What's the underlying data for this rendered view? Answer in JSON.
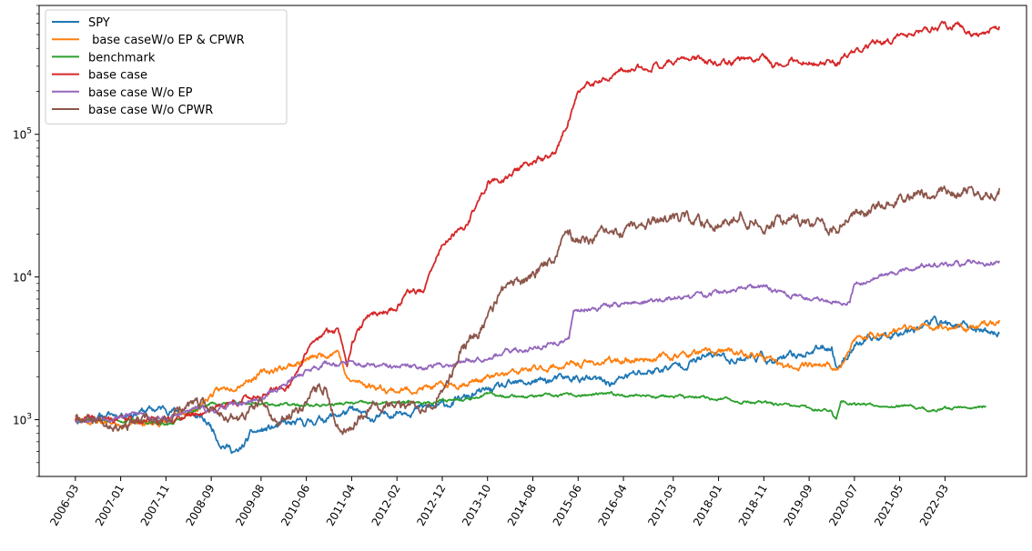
{
  "chart_data": {
    "type": "line",
    "title": "",
    "xlabel": "",
    "ylabel": "",
    "yscale": "log",
    "ylim": [
      400,
      800000
    ],
    "yticks": [
      {
        "value": 1000,
        "base": "10",
        "exp": "3"
      },
      {
        "value": 10000,
        "base": "10",
        "exp": "4"
      },
      {
        "value": 100000,
        "base": "10",
        "exp": "5"
      }
    ],
    "xticks": [
      "2006-03",
      "2007-01",
      "2007-11",
      "2008-09",
      "2009-08",
      "2010-06",
      "2011-04",
      "2012-02",
      "2012-12",
      "2013-10",
      "2014-08",
      "2015-06",
      "2016-04",
      "2017-03",
      "2018-01",
      "2018-11",
      "2019-09",
      "2020-07",
      "2021-05",
      "2022-03"
    ],
    "xlim": [
      "2005-07",
      "2023-09"
    ],
    "legend_position": "upper-left",
    "grid": false,
    "series": [
      {
        "name": "SPY",
        "color": "#1f77b4",
        "noise": 0.035,
        "seed": 11,
        "points": [
          [
            "2006-03",
            1000
          ],
          [
            "2007-06",
            1150
          ],
          [
            "2007-11",
            1200
          ],
          [
            "2008-06",
            1050
          ],
          [
            "2008-09",
            900
          ],
          [
            "2008-11",
            700
          ],
          [
            "2009-03",
            580
          ],
          [
            "2009-06",
            800
          ],
          [
            "2009-12",
            900
          ],
          [
            "2010-06",
            950
          ],
          [
            "2011-04",
            1150
          ],
          [
            "2011-09",
            1000
          ],
          [
            "2012-02",
            1150
          ],
          [
            "2012-12",
            1250
          ],
          [
            "2013-10",
            1600
          ],
          [
            "2014-08",
            1850
          ],
          [
            "2015-06",
            1950
          ],
          [
            "2016-02",
            1800
          ],
          [
            "2016-04",
            2000
          ],
          [
            "2017-03",
            2350
          ],
          [
            "2018-01",
            2900
          ],
          [
            "2018-03",
            2650
          ],
          [
            "2018-11",
            2800
          ],
          [
            "2019-01",
            2500
          ],
          [
            "2019-09",
            3000
          ],
          [
            "2020-02",
            3300
          ],
          [
            "2020-03",
            2300
          ],
          [
            "2020-07",
            3300
          ],
          [
            "2021-05",
            4200
          ],
          [
            "2022-01",
            4900
          ],
          [
            "2022-10",
            4300
          ],
          [
            "2023-03",
            4000
          ]
        ]
      },
      {
        "name": " base caseW/o EP & CPWR",
        "color": "#ff7f0e",
        "noise": 0.03,
        "seed": 23,
        "points": [
          [
            "2006-03",
            1000
          ],
          [
            "2007-06",
            930
          ],
          [
            "2007-11",
            960
          ],
          [
            "2008-06",
            1200
          ],
          [
            "2008-09",
            1500
          ],
          [
            "2009-08",
            2100
          ],
          [
            "2010-06",
            2600
          ],
          [
            "2011-01",
            3100
          ],
          [
            "2011-03",
            1900
          ],
          [
            "2011-04",
            1850
          ],
          [
            "2012-02",
            1600
          ],
          [
            "2012-12",
            1700
          ],
          [
            "2013-10",
            1950
          ],
          [
            "2014-08",
            2250
          ],
          [
            "2015-06",
            2450
          ],
          [
            "2016-04",
            2600
          ],
          [
            "2017-03",
            2800
          ],
          [
            "2018-01",
            3000
          ],
          [
            "2018-06",
            2900
          ],
          [
            "2018-11",
            2700
          ],
          [
            "2019-04",
            2300
          ],
          [
            "2019-09",
            2500
          ],
          [
            "2020-04",
            2300
          ],
          [
            "2020-07",
            3600
          ],
          [
            "2021-05",
            4300
          ],
          [
            "2022-03",
            4500
          ],
          [
            "2022-10",
            4400
          ],
          [
            "2023-03",
            5000
          ]
        ]
      },
      {
        "name": "benchmark",
        "color": "#2ca02c",
        "noise": 0.015,
        "seed": 37,
        "points": [
          [
            "2006-03",
            1000
          ],
          [
            "2007-06",
            980
          ],
          [
            "2007-11",
            900
          ],
          [
            "2008-06",
            1200
          ],
          [
            "2008-09",
            1300
          ],
          [
            "2009-08",
            1300
          ],
          [
            "2010-06",
            1250
          ],
          [
            "2011-04",
            1300
          ],
          [
            "2012-02",
            1300
          ],
          [
            "2012-12",
            1350
          ],
          [
            "2013-10",
            1500
          ],
          [
            "2014-08",
            1450
          ],
          [
            "2015-06",
            1480
          ],
          [
            "2016-04",
            1500
          ],
          [
            "2017-03",
            1450
          ],
          [
            "2018-01",
            1400
          ],
          [
            "2018-11",
            1300
          ],
          [
            "2019-09",
            1200
          ],
          [
            "2020-02",
            1150
          ],
          [
            "2020-03",
            1000
          ],
          [
            "2020-04",
            1350
          ],
          [
            "2020-07",
            1300
          ],
          [
            "2021-05",
            1250
          ],
          [
            "2022-01",
            1150
          ],
          [
            "2022-03",
            1200
          ],
          [
            "2022-12",
            1250
          ]
        ]
      },
      {
        "name": "base case",
        "color": "#d62728",
        "noise": 0.03,
        "seed": 41,
        "points": [
          [
            "2006-03",
            1000
          ],
          [
            "2007-06",
            1000
          ],
          [
            "2007-11",
            1000
          ],
          [
            "2008-06",
            1100
          ],
          [
            "2008-09",
            1200
          ],
          [
            "2009-08",
            1500
          ],
          [
            "2010-02",
            1700
          ],
          [
            "2010-06",
            3000
          ],
          [
            "2010-10",
            4000
          ],
          [
            "2011-01",
            4300
          ],
          [
            "2011-03",
            2600
          ],
          [
            "2011-04",
            3500
          ],
          [
            "2011-08",
            5500
          ],
          [
            "2012-02",
            6000
          ],
          [
            "2012-04",
            8000
          ],
          [
            "2012-08",
            8000
          ],
          [
            "2012-12",
            17000
          ],
          [
            "2013-05",
            22000
          ],
          [
            "2013-10",
            45000
          ],
          [
            "2014-02",
            50000
          ],
          [
            "2014-08",
            65000
          ],
          [
            "2015-01",
            70000
          ],
          [
            "2015-06",
            200000
          ],
          [
            "2015-12",
            240000
          ],
          [
            "2016-04",
            270000
          ],
          [
            "2017-03",
            330000
          ],
          [
            "2017-09",
            340000
          ],
          [
            "2018-01",
            300000
          ],
          [
            "2018-06",
            330000
          ],
          [
            "2018-11",
            360000
          ],
          [
            "2019-01",
            300000
          ],
          [
            "2019-04",
            340000
          ],
          [
            "2019-09",
            320000
          ],
          [
            "2020-03",
            310000
          ],
          [
            "2020-07",
            380000
          ],
          [
            "2021-05",
            480000
          ],
          [
            "2022-01",
            560000
          ],
          [
            "2022-06",
            570000
          ],
          [
            "2022-10",
            500000
          ],
          [
            "2023-03",
            570000
          ]
        ]
      },
      {
        "name": "base case W/o EP",
        "color": "#9467bd",
        "noise": 0.025,
        "seed": 53,
        "points": [
          [
            "2006-03",
            1000
          ],
          [
            "2007-06",
            1100
          ],
          [
            "2007-11",
            1000
          ],
          [
            "2008-06",
            1200
          ],
          [
            "2008-09",
            1150
          ],
          [
            "2009-08",
            1400
          ],
          [
            "2010-06",
            2200
          ],
          [
            "2010-10",
            2500
          ],
          [
            "2011-04",
            2450
          ],
          [
            "2012-02",
            2300
          ],
          [
            "2012-12",
            2400
          ],
          [
            "2013-10",
            2800
          ],
          [
            "2014-08",
            3200
          ],
          [
            "2015-04",
            3600
          ],
          [
            "2015-05",
            6000
          ],
          [
            "2015-06",
            5900
          ],
          [
            "2016-04",
            6500
          ],
          [
            "2017-03",
            7000
          ],
          [
            "2018-01",
            7800
          ],
          [
            "2018-11",
            8500
          ],
          [
            "2019-03",
            7800
          ],
          [
            "2019-09",
            7000
          ],
          [
            "2020-06",
            6800
          ],
          [
            "2020-07",
            9000
          ],
          [
            "2021-05",
            11000
          ],
          [
            "2021-10",
            12000
          ],
          [
            "2022-03",
            12000
          ],
          [
            "2023-03",
            13000
          ]
        ]
      },
      {
        "name": "base case W/o CPWR",
        "color": "#8c564b",
        "noise": 0.05,
        "seed": 67,
        "points": [
          [
            "2006-03",
            1100
          ],
          [
            "2007-01",
            950
          ],
          [
            "2007-11",
            950
          ],
          [
            "2008-03",
            1300
          ],
          [
            "2008-09",
            1200
          ],
          [
            "2009-03",
            1000
          ],
          [
            "2009-08",
            1300
          ],
          [
            "2009-12",
            900
          ],
          [
            "2010-06",
            1400
          ],
          [
            "2010-10",
            1700
          ],
          [
            "2011-01",
            900
          ],
          [
            "2011-04",
            900
          ],
          [
            "2011-09",
            1400
          ],
          [
            "2012-02",
            1200
          ],
          [
            "2012-08",
            1300
          ],
          [
            "2012-12",
            1500
          ],
          [
            "2013-04",
            3000
          ],
          [
            "2013-10",
            5000
          ],
          [
            "2014-01",
            8000
          ],
          [
            "2014-08",
            10000
          ],
          [
            "2015-01",
            15000
          ],
          [
            "2015-03",
            20000
          ],
          [
            "2015-06",
            18000
          ],
          [
            "2016-04",
            20000
          ],
          [
            "2016-10",
            24000
          ],
          [
            "2017-03",
            25000
          ],
          [
            "2018-01",
            24000
          ],
          [
            "2018-06",
            28000
          ],
          [
            "2018-11",
            23000
          ],
          [
            "2019-04",
            26000
          ],
          [
            "2019-09",
            24000
          ],
          [
            "2020-03",
            22000
          ],
          [
            "2020-07",
            28000
          ],
          [
            "2021-05",
            36000
          ],
          [
            "2022-01",
            40000
          ],
          [
            "2022-10",
            38000
          ],
          [
            "2023-03",
            42000
          ]
        ]
      }
    ]
  }
}
